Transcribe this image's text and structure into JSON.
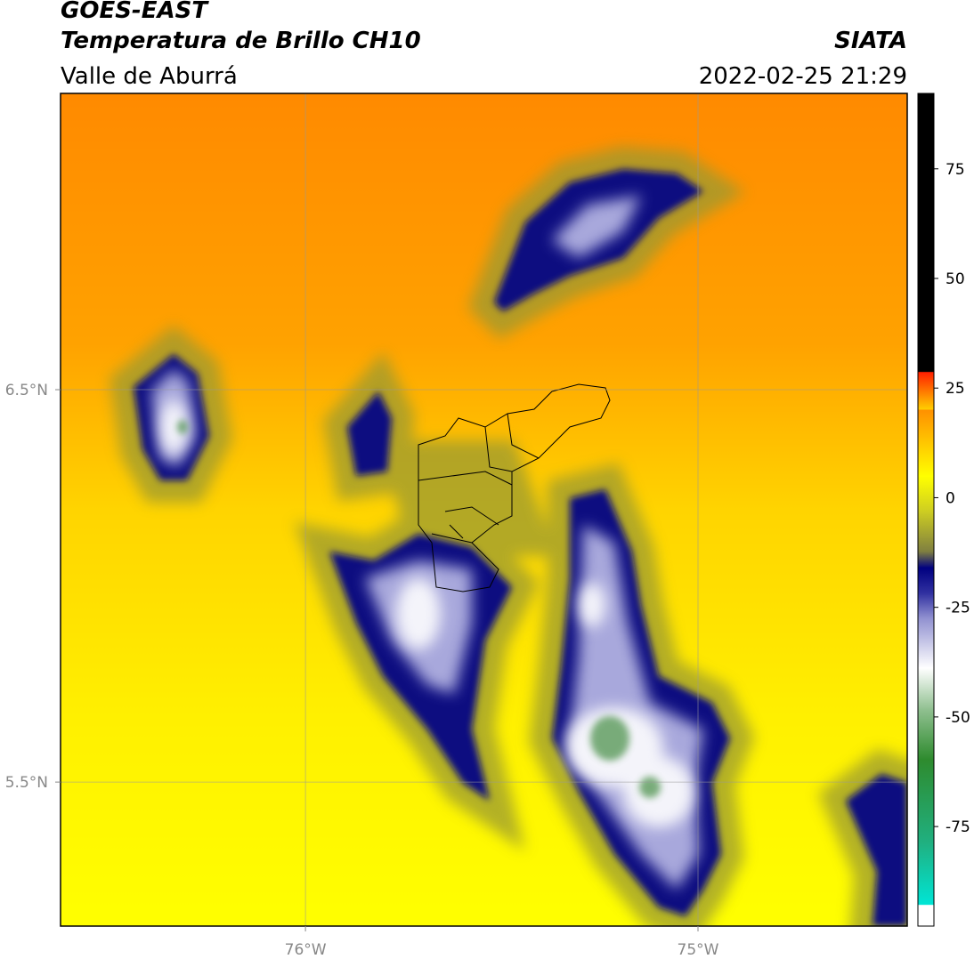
{
  "header": {
    "title": "GOES-EAST",
    "subtitle": "Temperatura de Brillo CH10",
    "region": "Valle de Aburrá",
    "source": "SIATA",
    "datetime": "2022-02-25 21:29"
  },
  "map": {
    "xlim": [
      -76.624,
      -74.467
    ],
    "ylim": [
      5.133,
      7.255
    ],
    "xticks": [
      {
        "value": -76,
        "label": "76°W"
      },
      {
        "value": -75,
        "label": "75°W"
      }
    ],
    "yticks": [
      {
        "value": 6.5,
        "label": "6.5°N"
      },
      {
        "value": 5.5,
        "label": "5.5°N"
      }
    ],
    "grid": true,
    "colorbar": {
      "lim": [
        -97.7,
        92.2
      ],
      "ticks": [
        75,
        50,
        25,
        0,
        -25,
        -50,
        -75
      ]
    }
  }
}
